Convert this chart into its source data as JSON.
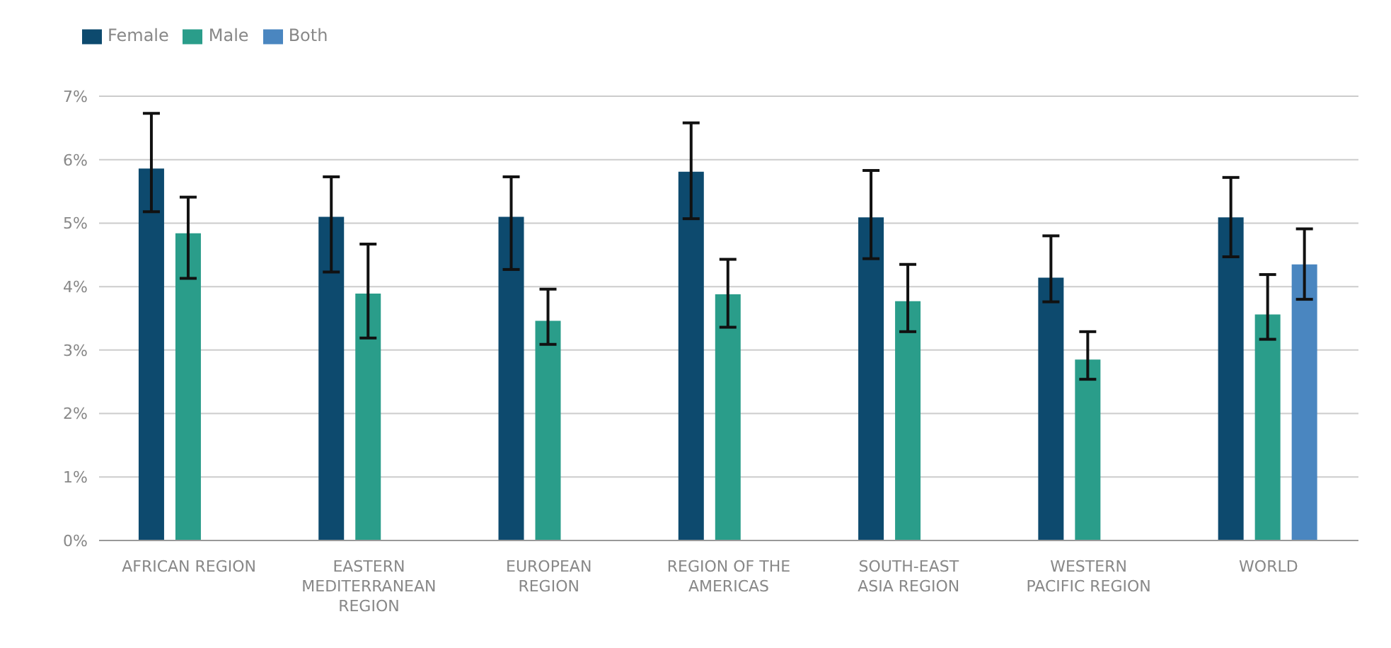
{
  "chart_data": {
    "type": "bar",
    "categories": [
      "AFRICAN REGION",
      "EASTERN MEDITERRANEAN REGION",
      "EUROPEAN REGION",
      "REGION OF THE AMERICAS",
      "SOUTH-EAST ASIA REGION",
      "WESTERN PACIFIC REGION",
      "WORLD"
    ],
    "series": [
      {
        "name": "Female",
        "color": "#0d4a6e",
        "values": [
          5.86,
          5.1,
          5.1,
          5.81,
          5.09,
          4.14,
          5.09
        ],
        "errors": [
          [
            5.18,
            6.73
          ],
          [
            4.23,
            5.73
          ],
          [
            4.27,
            5.73
          ],
          [
            5.07,
            6.58
          ],
          [
            4.44,
            5.83
          ],
          [
            3.76,
            4.8
          ],
          [
            4.47,
            5.72
          ]
        ]
      },
      {
        "name": "Male",
        "color": "#2a9d8a",
        "values": [
          4.84,
          3.89,
          3.46,
          3.88,
          3.77,
          2.85,
          3.56
        ],
        "errors": [
          [
            4.13,
            5.41
          ],
          [
            3.19,
            4.67
          ],
          [
            3.09,
            3.96
          ],
          [
            3.36,
            4.43
          ],
          [
            3.29,
            4.35
          ],
          [
            2.54,
            3.29
          ],
          [
            3.17,
            4.19
          ]
        ]
      },
      {
        "name": "Both",
        "color": "#4a86c0",
        "values": [
          null,
          null,
          null,
          null,
          null,
          null,
          4.35
        ],
        "errors": [
          null,
          null,
          null,
          null,
          null,
          null,
          [
            3.8,
            4.91
          ]
        ]
      }
    ],
    "ylim": [
      0,
      7
    ],
    "yticks": [
      {
        "value": 0,
        "label": "0%"
      },
      {
        "value": 1,
        "label": "1%"
      },
      {
        "value": 2,
        "label": "2%"
      },
      {
        "value": 3,
        "label": "3%"
      },
      {
        "value": 4,
        "label": "4%"
      },
      {
        "value": 5,
        "label": "5%"
      },
      {
        "value": 6,
        "label": "6%"
      },
      {
        "value": 7,
        "label": "7%"
      }
    ],
    "grid": "y",
    "legend": "top left"
  }
}
